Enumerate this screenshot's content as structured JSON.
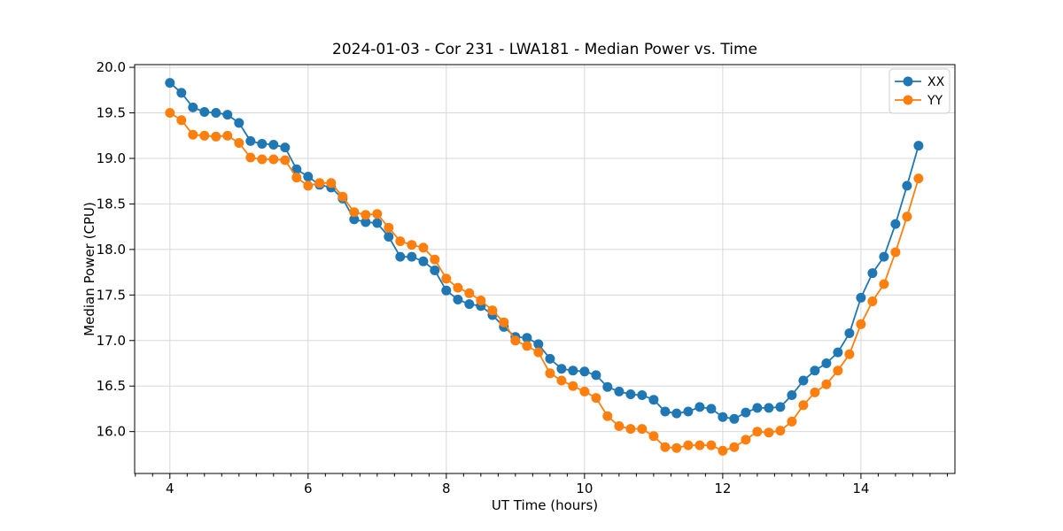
{
  "figure": {
    "background": "#ffffff"
  },
  "chart_data": {
    "type": "line",
    "title": "2024-01-03 - Cor 231 - LWA181 - Median Power vs. Time",
    "xlabel": "UT Time (hours)",
    "ylabel": "Median Power (CPU)",
    "xlim": [
      3.49,
      15.36
    ],
    "ylim": [
      15.54,
      20.03
    ],
    "grid": true,
    "legend_position": "upper right",
    "x_major_ticks": [
      4,
      6,
      8,
      10,
      12,
      14
    ],
    "x_major_tick_labels": [
      "4",
      "6",
      "8",
      "10",
      "12",
      "14"
    ],
    "x_minor_tick_step": 0.25,
    "y_major_ticks": [
      16.0,
      16.5,
      17.0,
      17.5,
      18.0,
      18.5,
      19.0,
      19.5,
      20.0
    ],
    "y_major_tick_labels": [
      "16.0",
      "16.5",
      "17.0",
      "17.5",
      "18.0",
      "18.5",
      "19.0",
      "19.5",
      "20.0"
    ],
    "x": [
      4,
      4.167,
      4.333,
      4.5,
      4.667,
      4.833,
      5,
      5.167,
      5.333,
      5.5,
      5.667,
      5.833,
      6,
      6.167,
      6.333,
      6.5,
      6.667,
      6.833,
      7,
      7.167,
      7.333,
      7.5,
      7.667,
      7.833,
      8,
      8.167,
      8.333,
      8.5,
      8.667,
      8.833,
      9,
      9.167,
      9.333,
      9.5,
      9.667,
      9.833,
      10,
      10.167,
      10.333,
      10.5,
      10.667,
      10.833,
      11,
      11.167,
      11.333,
      11.5,
      11.667,
      11.833,
      12,
      12.167,
      12.333,
      12.5,
      12.667,
      12.833,
      13,
      13.167,
      13.333,
      13.5,
      13.667,
      13.833,
      14,
      14.167,
      14.333,
      14.5,
      14.667,
      14.833
    ],
    "series": [
      {
        "name": "XX",
        "color": "#1f77b4",
        "values": [
          19.83,
          19.72,
          19.56,
          19.51,
          19.5,
          19.48,
          19.39,
          19.19,
          19.16,
          19.15,
          19.12,
          18.88,
          18.8,
          18.71,
          18.68,
          18.56,
          18.33,
          18.3,
          18.29,
          18.14,
          17.92,
          17.92,
          17.87,
          17.77,
          17.55,
          17.45,
          17.4,
          17.38,
          17.28,
          17.15,
          17.04,
          17.03,
          16.96,
          16.8,
          16.69,
          16.67,
          16.66,
          16.62,
          16.49,
          16.44,
          16.41,
          16.4,
          16.35,
          16.22,
          16.2,
          16.22,
          16.27,
          16.25,
          16.16,
          16.14,
          16.21,
          16.26,
          16.26,
          16.27,
          16.4,
          16.56,
          16.67,
          16.75,
          16.87,
          17.08,
          17.47,
          17.74,
          17.92,
          18.28,
          18.7,
          19.14
        ]
      },
      {
        "name": "YY",
        "color": "#ff7f0e",
        "values": [
          19.5,
          19.42,
          19.26,
          19.25,
          19.24,
          19.25,
          19.17,
          19.01,
          18.99,
          18.99,
          18.98,
          18.79,
          18.7,
          18.73,
          18.73,
          18.58,
          18.41,
          18.38,
          18.39,
          18.24,
          18.09,
          18.05,
          18.02,
          17.89,
          17.68,
          17.58,
          17.52,
          17.44,
          17.33,
          17.2,
          17.0,
          16.94,
          16.87,
          16.64,
          16.56,
          16.5,
          16.44,
          16.37,
          16.17,
          16.06,
          16.03,
          16.03,
          15.95,
          15.83,
          15.82,
          15.85,
          15.85,
          15.85,
          15.79,
          15.83,
          15.91,
          16.0,
          15.99,
          16.01,
          16.11,
          16.29,
          16.43,
          16.52,
          16.67,
          16.85,
          17.18,
          17.43,
          17.62,
          17.97,
          18.36,
          18.78
        ]
      }
    ],
    "style": {
      "grid_color": "#d8d8d8",
      "spine_color": "#000000",
      "marker_radius": 5.5,
      "line_width": 1.8,
      "legend_border_color": "#cccccc"
    }
  }
}
